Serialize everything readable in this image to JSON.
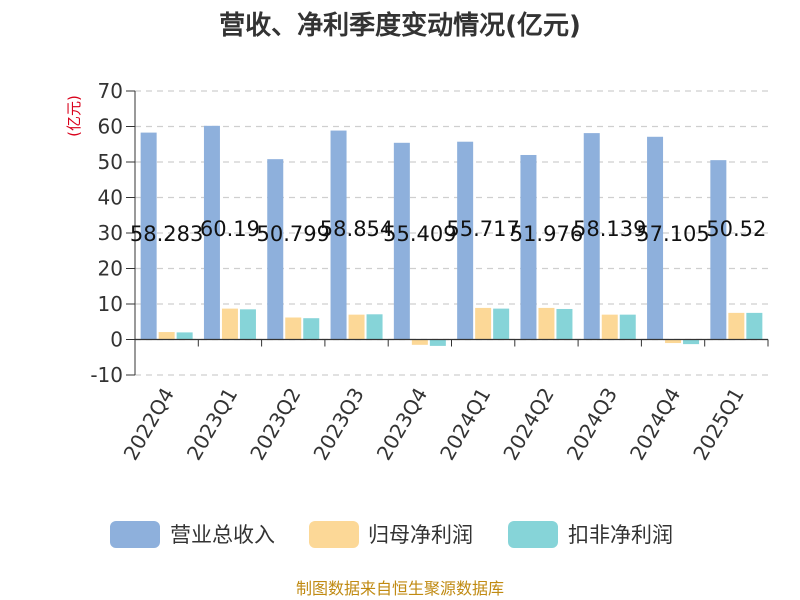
{
  "chart_data": {
    "type": "bar",
    "title": "营收、净利季度变动情况(亿元)",
    "ylabel": "(亿元)",
    "xlabel": "",
    "ylim": [
      -10,
      70
    ],
    "yticks": [
      -10,
      0,
      10,
      20,
      30,
      40,
      50,
      60,
      70
    ],
    "grid": true,
    "legend_position": "bottom",
    "categories": [
      "2022Q4",
      "2023Q1",
      "2023Q2",
      "2023Q3",
      "2023Q4",
      "2024Q1",
      "2024Q2",
      "2024Q3",
      "2024Q4",
      "2025Q1"
    ],
    "series": [
      {
        "name": "营业总收入",
        "color": "#8eb0dc",
        "values": [
          58.283,
          60.19,
          50.799,
          58.854,
          55.409,
          55.717,
          51.976,
          58.139,
          57.105,
          50.52
        ],
        "labels": [
          "58.283",
          "60.19",
          "50.799",
          "58.854",
          "55.409",
          "55.717",
          "51.976",
          "58.139",
          "57.105",
          "50.52"
        ]
      },
      {
        "name": "归母净利润",
        "color": "#fcd897",
        "values": [
          2.1,
          8.7,
          6.2,
          7.0,
          -1.5,
          8.9,
          8.9,
          7.0,
          -1.0,
          7.5
        ]
      },
      {
        "name": "扣非净利润",
        "color": "#86d4d8",
        "values": [
          2.0,
          8.5,
          6.0,
          7.1,
          -1.8,
          8.7,
          8.6,
          7.0,
          -1.3,
          7.5
        ]
      }
    ],
    "source": "制图数据来自恒生聚源数据库"
  }
}
